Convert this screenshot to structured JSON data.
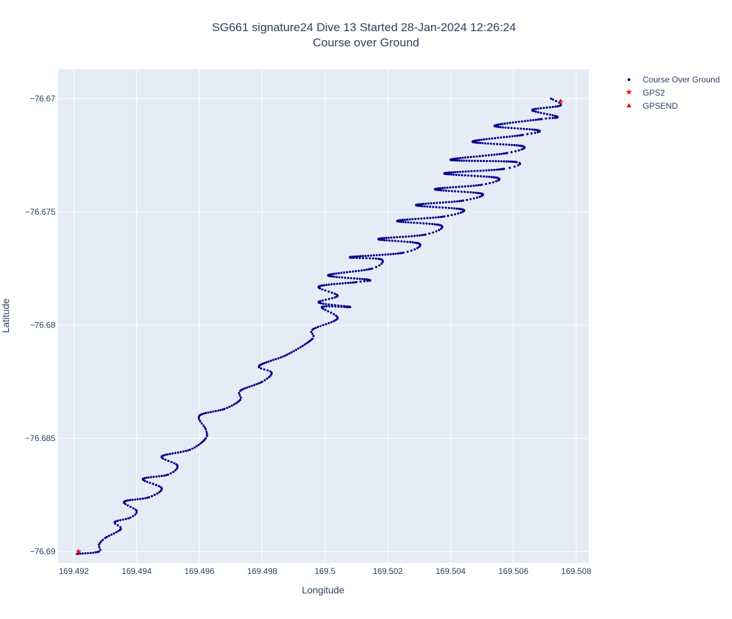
{
  "chart_data": {
    "type": "scatter",
    "title_line1": "SG661 signature24 Dive 13 Started 28-Jan-2024 12:26:24",
    "title_line2": "Course over Ground",
    "xlabel": "Longitude",
    "ylabel": "Latitude",
    "xlim": [
      169.4915,
      169.5084
    ],
    "ylim": [
      -76.6905,
      -76.6687
    ],
    "xticks": [
      169.492,
      169.494,
      169.496,
      169.498,
      169.5,
      169.502,
      169.504,
      169.506,
      169.508
    ],
    "xtick_labels": [
      "169.492",
      "169.494",
      "169.496",
      "169.498",
      "169.5",
      "169.502",
      "169.504",
      "169.506",
      "169.508"
    ],
    "yticks": [
      -76.67,
      -76.675,
      -76.68,
      -76.685,
      -76.69
    ],
    "ytick_labels": [
      "−76.67",
      "−76.675",
      "−76.68",
      "−76.685",
      "−76.69"
    ],
    "grid": true,
    "plot_bgcolor": "#e5ecf6",
    "legend_position": "top-right, outside plot",
    "series": [
      {
        "name": "Course Over Ground",
        "marker": "dot",
        "color": "#00008b",
        "path": [
          [
            169.4921,
            -76.6901
          ],
          [
            169.4928,
            -76.69
          ],
          [
            169.4928,
            -76.6897
          ],
          [
            169.493,
            -76.6894
          ],
          [
            169.4935,
            -76.689
          ],
          [
            169.4933,
            -76.6887
          ],
          [
            169.4938,
            -76.6885
          ],
          [
            169.494,
            -76.6882
          ],
          [
            169.4936,
            -76.6878
          ],
          [
            169.4944,
            -76.6876
          ],
          [
            169.4948,
            -76.6872
          ],
          [
            169.4942,
            -76.6868
          ],
          [
            169.495,
            -76.6866
          ],
          [
            169.4953,
            -76.6862
          ],
          [
            169.4948,
            -76.6858
          ],
          [
            169.4957,
            -76.6855
          ],
          [
            169.4962,
            -76.685
          ],
          [
            169.4962,
            -76.6846
          ],
          [
            169.496,
            -76.684
          ],
          [
            169.4968,
            -76.6837
          ],
          [
            169.4973,
            -76.6833
          ],
          [
            169.4973,
            -76.6829
          ],
          [
            169.498,
            -76.6825
          ],
          [
            169.4983,
            -76.6821
          ],
          [
            169.4979,
            -76.6818
          ],
          [
            169.4988,
            -76.6813
          ],
          [
            169.4996,
            -76.6806
          ],
          [
            169.4996,
            -76.6802
          ],
          [
            169.5004,
            -76.6797
          ],
          [
            169.4999,
            -76.6792
          ],
          [
            169.5008,
            -76.6792
          ],
          [
            169.4998,
            -76.679
          ],
          [
            169.5004,
            -76.6787
          ],
          [
            169.4998,
            -76.6783
          ],
          [
            169.501,
            -76.6781
          ],
          [
            169.5014,
            -76.678
          ],
          [
            169.5001,
            -76.6778
          ],
          [
            169.5015,
            -76.6775
          ],
          [
            169.5018,
            -76.6771
          ],
          [
            169.5008,
            -76.677
          ],
          [
            169.5025,
            -76.6768
          ],
          [
            169.503,
            -76.6764
          ],
          [
            169.5017,
            -76.6762
          ],
          [
            169.5032,
            -76.676
          ],
          [
            169.5037,
            -76.6756
          ],
          [
            169.5023,
            -76.6754
          ],
          [
            169.5038,
            -76.6752
          ],
          [
            169.5044,
            -76.6749
          ],
          [
            169.5029,
            -76.6747
          ],
          [
            169.5044,
            -76.6745
          ],
          [
            169.505,
            -76.6742
          ],
          [
            169.5035,
            -76.674
          ],
          [
            169.505,
            -76.6738
          ],
          [
            169.5055,
            -76.6735
          ],
          [
            169.5038,
            -76.6733
          ],
          [
            169.5057,
            -76.6731
          ],
          [
            169.5061,
            -76.6728
          ],
          [
            169.504,
            -76.6727
          ],
          [
            169.5058,
            -76.6724
          ],
          [
            169.5063,
            -76.6721
          ],
          [
            169.5047,
            -76.6719
          ],
          [
            169.5063,
            -76.6716
          ],
          [
            169.5068,
            -76.6714
          ],
          [
            169.5054,
            -76.6712
          ],
          [
            169.5069,
            -76.6709
          ],
          [
            169.5074,
            -76.6708
          ],
          [
            169.5066,
            -76.6705
          ],
          [
            169.5075,
            -76.6703
          ],
          [
            169.5072,
            -76.67
          ]
        ]
      },
      {
        "name": "GPS2",
        "marker": "star",
        "color": "#ff0000",
        "points": [
          [
            169.49215,
            -76.69
          ]
        ]
      },
      {
        "name": "GPSEND",
        "marker": "triangle-up",
        "color": "#ff0000",
        "points": [
          [
            169.5075,
            -76.6701
          ]
        ]
      }
    ]
  }
}
